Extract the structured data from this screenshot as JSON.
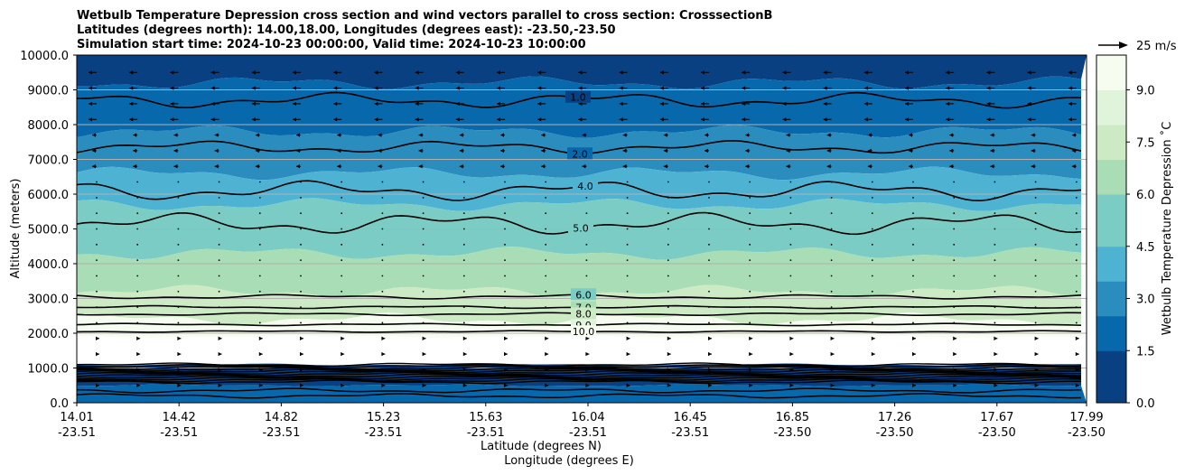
{
  "chart_data": {
    "type": "contourf",
    "title_lines": [
      "Wetbulb Temperature Depression cross section and wind vectors parallel to cross section: CrosssectionB",
      "Latitudes (degrees north): 14.00,18.00, Longitudes (degrees east): -23.50,-23.50",
      "Simulation start time: 2024-10-23 00:00:00, Valid time: 2024-10-23 10:00:00"
    ],
    "ylabel": "Altitude (meters)",
    "xlabel_lat": "Latitude (degrees N)",
    "xlabel_lon": "Longitude (degrees E)",
    "ylim": [
      0,
      10000
    ],
    "y_ticks": [
      "0.0",
      "1000.0",
      "2000.0",
      "3000.0",
      "4000.0",
      "5000.0",
      "6000.0",
      "7000.0",
      "8000.0",
      "9000.0",
      "10000.0"
    ],
    "x_ticks_lat": [
      "14.01",
      "14.42",
      "14.82",
      "15.23",
      "15.63",
      "16.04",
      "16.45",
      "16.85",
      "17.26",
      "17.67",
      "17.99"
    ],
    "x_ticks_lon": [
      "-23.51",
      "-23.51",
      "-23.51",
      "-23.51",
      "-23.51",
      "-23.51",
      "-23.51",
      "-23.50",
      "-23.50",
      "-23.50",
      "-23.50"
    ],
    "grid": "horizontal",
    "colorbar": {
      "label": "Wetbulb Temperature Depression ˚C",
      "range": [
        0,
        10
      ],
      "ticks": [
        "0.0",
        "1.5",
        "3.0",
        "4.5",
        "6.0",
        "7.5",
        "9.0"
      ],
      "colors": [
        "#084081",
        "#0868ac",
        "#2b8cbe",
        "#4eb3d3",
        "#7bccc4",
        "#a8ddb5",
        "#ccebc5",
        "#e0f3db",
        "#f7fcf0"
      ]
    },
    "quiver_key": "25 m/s",
    "contour_levels": [
      {
        "value": 1.0,
        "label": "1.0"
      },
      {
        "value": 2.0,
        "label": "2.0"
      },
      {
        "value": 4.0,
        "label": "4.0"
      },
      {
        "value": 5.0,
        "label": "5.0"
      },
      {
        "value": 6.0,
        "label": "6.0"
      },
      {
        "value": 7.0,
        "label": "7.0"
      },
      {
        "value": 8.0,
        "label": "8.0"
      },
      {
        "value": 9.0,
        "label": "9.0"
      },
      {
        "value": 10.0,
        "label": "10.0"
      }
    ],
    "contour_altitudes_m": {
      "9.0_upper": 2450,
      "10.0": 2050,
      "9.0": 2250,
      "8.0": 2550,
      "7.0": 2750,
      "6.0": 3050,
      "5.0": 5150,
      "4.0": 6100,
      "2.0": 7350,
      "1.0": 8700
    },
    "color_bands": [
      {
        "from_m": 9200,
        "to_m": 10000,
        "value": 0.8
      },
      {
        "from_m": 7800,
        "to_m": 9200,
        "value": 1.6
      },
      {
        "from_m": 6600,
        "to_m": 7800,
        "value": 2.6
      },
      {
        "from_m": 5700,
        "to_m": 6600,
        "value": 3.6
      },
      {
        "from_m": 4300,
        "to_m": 5700,
        "value": 5.2
      },
      {
        "from_m": 3200,
        "to_m": 4300,
        "value": 6.3
      },
      {
        "from_m": 2400,
        "to_m": 3200,
        "value": 7.6
      },
      {
        "from_m": 1900,
        "to_m": 2400,
        "value": 9.2
      },
      {
        "from_m": 1100,
        "to_m": 1900,
        "value": 11
      },
      {
        "from_m": 500,
        "to_m": 1100,
        "value": 0.6
      },
      {
        "from_m": 0,
        "to_m": 500,
        "value": 1.3
      }
    ]
  }
}
